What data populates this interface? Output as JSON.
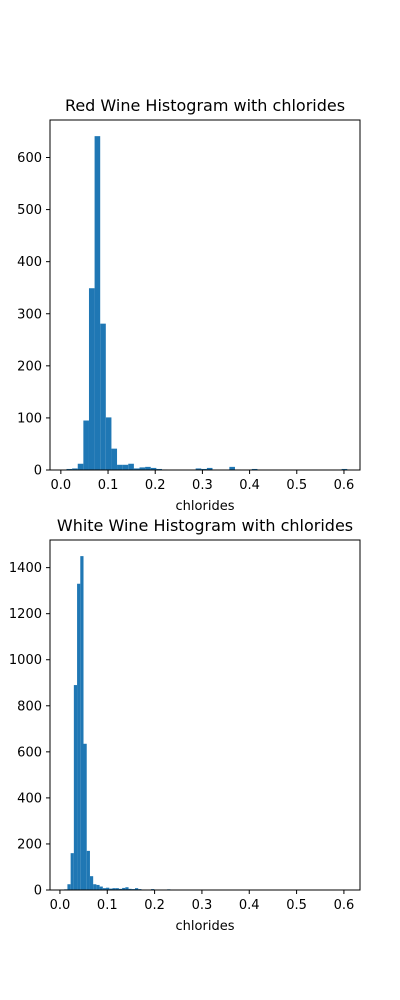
{
  "chart_data": [
    {
      "type": "bar",
      "title": "Red Wine Histogram with chlorides",
      "xlabel": "chlorides",
      "ylabel": "",
      "xlim": [
        -0.023,
        0.634
      ],
      "ylim": [
        0,
        672
      ],
      "xticks": [
        0.0,
        0.1,
        0.2,
        0.3,
        0.4,
        0.5,
        0.6
      ],
      "xtick_labels": [
        "0.0",
        "0.1",
        "0.2",
        "0.3",
        "0.4",
        "0.5",
        "0.6"
      ],
      "yticks": [
        0,
        100,
        200,
        300,
        400,
        500,
        600
      ],
      "ytick_labels": [
        "0",
        "100",
        "200",
        "300",
        "400",
        "500",
        "600"
      ],
      "bin_start": 0.012,
      "bin_width": 0.0119,
      "values": [
        2,
        3,
        12,
        95,
        349,
        641,
        281,
        101,
        41,
        10,
        10,
        12,
        3,
        5,
        6,
        4,
        2,
        1,
        0,
        0,
        0,
        0,
        0,
        3,
        2,
        4,
        0,
        0,
        0,
        6,
        1,
        0,
        0,
        2,
        0,
        0,
        0,
        0,
        0,
        0,
        0,
        0,
        0,
        0,
        0,
        0,
        0,
        0,
        0,
        2
      ]
    },
    {
      "type": "bar",
      "title": "White Wine Histogram with chlorides",
      "xlabel": "chlorides",
      "ylabel": "",
      "xlim": [
        -0.021,
        0.634
      ],
      "ylim": [
        0,
        1520
      ],
      "xticks": [
        0.0,
        0.1,
        0.2,
        0.3,
        0.4,
        0.5,
        0.6
      ],
      "xtick_labels": [
        "0.0",
        "0.1",
        "0.2",
        "0.3",
        "0.4",
        "0.5",
        "0.6"
      ],
      "yticks": [
        0,
        200,
        400,
        600,
        800,
        1000,
        1200,
        1400
      ],
      "ytick_labels": [
        "0",
        "200",
        "400",
        "600",
        "800",
        "1000",
        "1200",
        "1400"
      ],
      "bin_start": 0.009,
      "bin_width": 0.0068,
      "values": [
        3,
        25,
        160,
        890,
        1330,
        1450,
        635,
        170,
        60,
        25,
        22,
        15,
        8,
        10,
        6,
        8,
        8,
        5,
        9,
        12,
        5,
        4,
        8,
        4,
        2,
        1,
        2,
        4,
        0,
        0,
        0,
        0,
        3,
        0,
        0,
        0,
        0,
        0,
        0,
        0,
        0,
        0,
        0,
        0,
        0,
        0,
        0,
        0,
        0,
        0,
        0,
        0,
        0,
        0,
        0,
        0,
        0,
        0,
        0,
        0,
        0,
        0,
        0,
        0,
        0,
        0,
        0,
        0,
        0,
        0,
        0,
        0,
        0,
        0,
        0,
        0,
        0,
        0,
        0,
        0,
        0,
        0,
        0,
        0,
        0,
        0,
        0,
        0,
        1
      ]
    }
  ],
  "colors": {
    "bar": "#1f77b4",
    "axis": "#000000",
    "background": "#ffffff"
  }
}
